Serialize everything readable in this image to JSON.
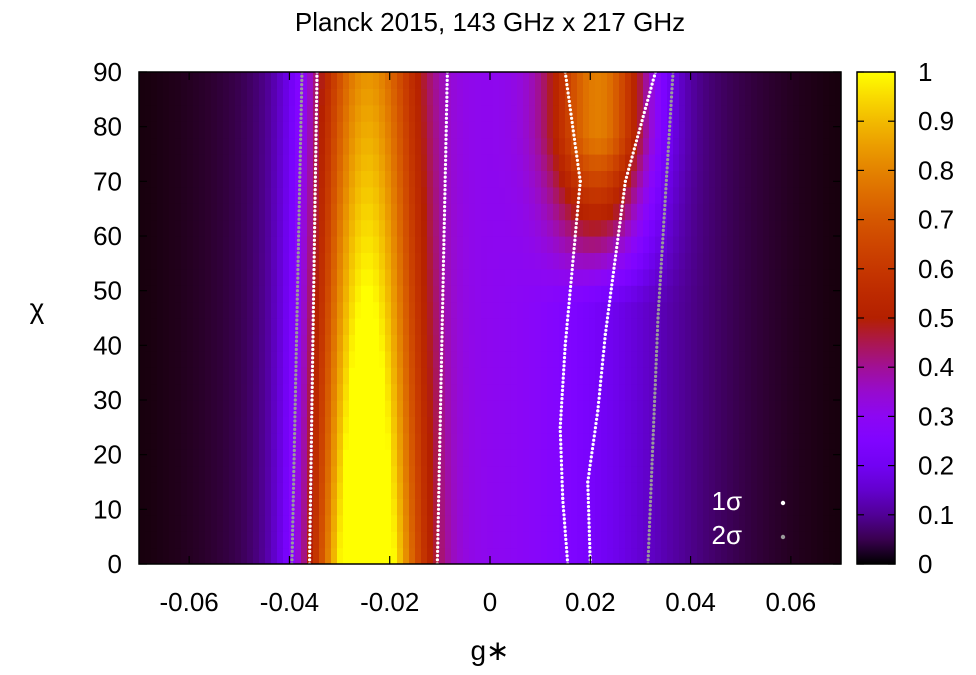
{
  "chart_data": {
    "type": "heatmap",
    "title": "Planck 2015, 143 GHz x 217 GHz",
    "xlabel": "g∗",
    "ylabel": "χ",
    "xlim": [
      -0.07,
      0.07
    ],
    "ylim": [
      0,
      90
    ],
    "xticks": [
      -0.06,
      -0.04,
      -0.02,
      0,
      0.02,
      0.04,
      0.06
    ],
    "xtick_labels": [
      "-0.06",
      "-0.04",
      "-0.02",
      "0",
      "0.02",
      "0.04",
      "0.06"
    ],
    "yticks": [
      0,
      10,
      20,
      30,
      40,
      50,
      60,
      70,
      80,
      90
    ],
    "ytick_labels": [
      "0",
      "10",
      "20",
      "30",
      "40",
      "50",
      "60",
      "70",
      "80",
      "90"
    ],
    "colorbar": {
      "range": [
        0,
        1
      ],
      "ticks": [
        0,
        0.1,
        0.2,
        0.3,
        0.4,
        0.5,
        0.6,
        0.7,
        0.8,
        0.9,
        1
      ],
      "tick_labels": [
        "0",
        "0.1",
        "0.2",
        "0.3",
        "0.4",
        "0.5",
        "0.6",
        "0.7",
        "0.8",
        "0.9",
        "1"
      ],
      "colormap": "gnuplot-pm3d"
    },
    "contours": [
      {
        "name": "1σ",
        "color": "#ffffff",
        "lines": [
          {
            "g": [
              -0.036,
              -0.0345
            ],
            "chi": [
              0,
              90
            ]
          },
          {
            "g": [
              -0.0105,
              -0.0085
            ],
            "chi": [
              0,
              90
            ]
          },
          {
            "g": [
              0.0155,
              0.0145,
              0.014,
              0.015,
              0.018,
              0.015
            ],
            "chi": [
              0,
              12,
              25,
              40,
              70,
              90
            ]
          },
          {
            "g": [
              0.02,
              0.0195,
              0.0215,
              0.023,
              0.027,
              0.033
            ],
            "chi": [
              0,
              15,
              28,
              42,
              70,
              90
            ]
          }
        ]
      },
      {
        "name": "2σ",
        "color": "#9a9a9a",
        "lines": [
          {
            "g": [
              -0.0395,
              -0.0375
            ],
            "chi": [
              0,
              90
            ]
          },
          {
            "g": [
              0.0315,
              0.0335,
              0.0365
            ],
            "chi": [
              0,
              45,
              90
            ]
          }
        ]
      }
    ],
    "legend": {
      "placement": "bottom-right",
      "entries": [
        {
          "label": "1σ",
          "color": "#ffffff"
        },
        {
          "label": "2σ",
          "color": "#9a9a9a"
        }
      ]
    }
  }
}
